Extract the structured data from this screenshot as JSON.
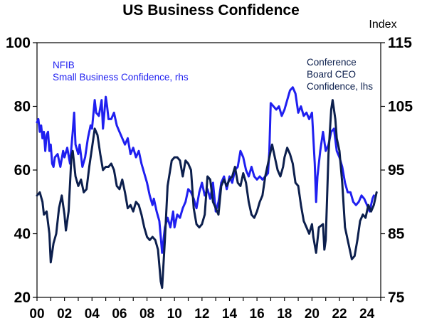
{
  "chart_data": {
    "type": "line",
    "title": "US Business Confidence",
    "y2label": "Index",
    "xlim": [
      2000,
      2025
    ],
    "ylim_left": [
      20,
      100
    ],
    "ylim_right": [
      75,
      115
    ],
    "left_ticks": [
      "100",
      "80",
      "60",
      "40",
      "20"
    ],
    "right_ticks": [
      "115",
      "105",
      "95",
      "85",
      "75"
    ],
    "x_ticks": [
      "00",
      "02",
      "04",
      "06",
      "08",
      "10",
      "12",
      "14",
      "16",
      "18",
      "20",
      "22",
      "24"
    ],
    "grid": false,
    "colors": {
      "nfib": "#1f1ff0",
      "ceo": "#0c1f4d"
    },
    "annotations": {
      "nfib_label_1": "NFIB",
      "nfib_label_2": "Small Business Confidence, rhs",
      "ceo_label_1": "Conference",
      "ceo_label_2": "Board CEO",
      "ceo_label_3": "Confidence, lhs"
    },
    "series": [
      {
        "key": "nfib",
        "axis": "right",
        "points": [
          [
            2000.0,
            102.5
          ],
          [
            2000.1,
            103
          ],
          [
            2000.2,
            101
          ],
          [
            2000.3,
            102
          ],
          [
            2000.4,
            100
          ],
          [
            2000.5,
            101
          ],
          [
            2000.6,
            98
          ],
          [
            2000.7,
            100.5
          ],
          [
            2000.8,
            101
          ],
          [
            2000.9,
            98
          ],
          [
            2001.0,
            99
          ],
          [
            2001.1,
            96
          ],
          [
            2001.2,
            95.5
          ],
          [
            2001.3,
            97
          ],
          [
            2001.5,
            97.5
          ],
          [
            2001.7,
            95.5
          ],
          [
            2001.9,
            98
          ],
          [
            2002.0,
            97
          ],
          [
            2002.2,
            98.5
          ],
          [
            2002.4,
            96
          ],
          [
            2002.6,
            101
          ],
          [
            2002.7,
            104
          ],
          [
            2002.8,
            99
          ],
          [
            2003.0,
            97.5
          ],
          [
            2003.1,
            99
          ],
          [
            2003.3,
            95.5
          ],
          [
            2003.5,
            97
          ],
          [
            2003.7,
            100
          ],
          [
            2003.9,
            102
          ],
          [
            2004.0,
            101.5
          ],
          [
            2004.2,
            106
          ],
          [
            2004.3,
            104
          ],
          [
            2004.5,
            103.5
          ],
          [
            2004.7,
            106
          ],
          [
            2004.8,
            101.5
          ],
          [
            2005.0,
            106.5
          ],
          [
            2005.1,
            105
          ],
          [
            2005.2,
            103
          ],
          [
            2005.4,
            103
          ],
          [
            2005.6,
            104
          ],
          [
            2005.8,
            102
          ],
          [
            2006.0,
            101
          ],
          [
            2006.2,
            100
          ],
          [
            2006.4,
            99
          ],
          [
            2006.6,
            100
          ],
          [
            2006.8,
            97.5
          ],
          [
            2007.0,
            98.5
          ],
          [
            2007.2,
            97
          ],
          [
            2007.4,
            98
          ],
          [
            2007.6,
            96
          ],
          [
            2007.8,
            94.5
          ],
          [
            2008.0,
            93
          ],
          [
            2008.2,
            91
          ],
          [
            2008.4,
            89.5
          ],
          [
            2008.5,
            90.5
          ],
          [
            2008.7,
            88.5
          ],
          [
            2008.9,
            87
          ],
          [
            2009.0,
            84.5
          ],
          [
            2009.1,
            82
          ],
          [
            2009.3,
            86
          ],
          [
            2009.5,
            87.5
          ],
          [
            2009.7,
            86
          ],
          [
            2009.9,
            88.5
          ],
          [
            2010.0,
            86
          ],
          [
            2010.2,
            88
          ],
          [
            2010.4,
            87.5
          ],
          [
            2010.6,
            89
          ],
          [
            2010.8,
            90
          ],
          [
            2011.0,
            92
          ],
          [
            2011.2,
            91.5
          ],
          [
            2011.4,
            90.5
          ],
          [
            2011.6,
            89
          ],
          [
            2011.8,
            91.5
          ],
          [
            2012.0,
            93
          ],
          [
            2012.2,
            91
          ],
          [
            2012.4,
            92
          ],
          [
            2012.6,
            90.5
          ],
          [
            2012.8,
            93
          ],
          [
            2013.0,
            88.5
          ],
          [
            2013.2,
            90
          ],
          [
            2013.4,
            93
          ],
          [
            2013.6,
            94
          ],
          [
            2013.8,
            92
          ],
          [
            2014.0,
            94
          ],
          [
            2014.2,
            93
          ],
          [
            2014.4,
            95
          ],
          [
            2014.6,
            95.5
          ],
          [
            2014.8,
            98
          ],
          [
            2015.0,
            97
          ],
          [
            2015.2,
            95
          ],
          [
            2015.4,
            94
          ],
          [
            2015.6,
            95.5
          ],
          [
            2015.8,
            94
          ],
          [
            2016.0,
            93.5
          ],
          [
            2016.2,
            94
          ],
          [
            2016.4,
            93.5
          ],
          [
            2016.6,
            94
          ],
          [
            2016.8,
            94.5
          ],
          [
            2016.9,
            98
          ],
          [
            2017.0,
            105.5
          ],
          [
            2017.2,
            105
          ],
          [
            2017.4,
            104.5
          ],
          [
            2017.6,
            105
          ],
          [
            2017.8,
            103.5
          ],
          [
            2018.0,
            104.5
          ],
          [
            2018.2,
            106
          ],
          [
            2018.4,
            107.5
          ],
          [
            2018.6,
            108
          ],
          [
            2018.8,
            107
          ],
          [
            2019.0,
            104
          ],
          [
            2019.2,
            105
          ],
          [
            2019.4,
            103.5
          ],
          [
            2019.6,
            104
          ],
          [
            2019.8,
            103
          ],
          [
            2020.0,
            104
          ],
          [
            2020.2,
            96
          ],
          [
            2020.3,
            90
          ],
          [
            2020.4,
            94
          ],
          [
            2020.6,
            98
          ],
          [
            2020.8,
            101
          ],
          [
            2021.0,
            98
          ],
          [
            2021.2,
            99
          ],
          [
            2021.4,
            101
          ],
          [
            2021.6,
            101.5
          ],
          [
            2021.8,
            98
          ],
          [
            2022.0,
            97
          ],
          [
            2022.2,
            95.5
          ],
          [
            2022.4,
            93
          ],
          [
            2022.6,
            91.5
          ],
          [
            2022.8,
            91.5
          ],
          [
            2023.0,
            90
          ],
          [
            2023.2,
            89.5
          ],
          [
            2023.4,
            90
          ],
          [
            2023.6,
            91
          ],
          [
            2023.8,
            90.5
          ],
          [
            2024.0,
            89.5
          ],
          [
            2024.2,
            88.5
          ],
          [
            2024.4,
            90.5
          ],
          [
            2024.5,
            91
          ]
        ]
      },
      {
        "key": "ceo",
        "axis": "left",
        "points": [
          [
            2000.0,
            52
          ],
          [
            2000.2,
            53
          ],
          [
            2000.4,
            50
          ],
          [
            2000.5,
            46
          ],
          [
            2000.7,
            47
          ],
          [
            2000.9,
            40
          ],
          [
            2001.0,
            31
          ],
          [
            2001.2,
            37
          ],
          [
            2001.4,
            40
          ],
          [
            2001.6,
            48
          ],
          [
            2001.8,
            52
          ],
          [
            2002.0,
            46
          ],
          [
            2002.1,
            41
          ],
          [
            2002.3,
            47
          ],
          [
            2002.5,
            64
          ],
          [
            2002.6,
            66
          ],
          [
            2002.8,
            58
          ],
          [
            2003.0,
            55
          ],
          [
            2003.2,
            57
          ],
          [
            2003.4,
            53
          ],
          [
            2003.6,
            54
          ],
          [
            2003.8,
            61
          ],
          [
            2004.0,
            67
          ],
          [
            2004.2,
            73
          ],
          [
            2004.4,
            71
          ],
          [
            2004.6,
            65
          ],
          [
            2004.8,
            60
          ],
          [
            2005.0,
            61
          ],
          [
            2005.2,
            61
          ],
          [
            2005.4,
            62
          ],
          [
            2005.6,
            60
          ],
          [
            2005.8,
            55
          ],
          [
            2006.0,
            54
          ],
          [
            2006.2,
            57
          ],
          [
            2006.4,
            53
          ],
          [
            2006.6,
            48
          ],
          [
            2006.8,
            49
          ],
          [
            2007.0,
            47
          ],
          [
            2007.2,
            50
          ],
          [
            2007.4,
            49
          ],
          [
            2007.6,
            46
          ],
          [
            2007.8,
            42
          ],
          [
            2008.0,
            39
          ],
          [
            2008.2,
            38
          ],
          [
            2008.4,
            39
          ],
          [
            2008.6,
            38
          ],
          [
            2008.8,
            35
          ],
          [
            2009.0,
            25
          ],
          [
            2009.1,
            23
          ],
          [
            2009.3,
            38
          ],
          [
            2009.5,
            55
          ],
          [
            2009.8,
            63
          ],
          [
            2010.0,
            64
          ],
          [
            2010.2,
            64
          ],
          [
            2010.4,
            63
          ],
          [
            2010.6,
            58
          ],
          [
            2010.8,
            63
          ],
          [
            2011.0,
            62
          ],
          [
            2011.2,
            60
          ],
          [
            2011.4,
            48
          ],
          [
            2011.6,
            43
          ],
          [
            2011.8,
            42
          ],
          [
            2012.0,
            43
          ],
          [
            2012.2,
            46
          ],
          [
            2012.4,
            58
          ],
          [
            2012.6,
            57
          ],
          [
            2012.8,
            50
          ],
          [
            2013.0,
            48
          ],
          [
            2013.2,
            46
          ],
          [
            2013.4,
            55
          ],
          [
            2013.6,
            57
          ],
          [
            2013.8,
            55
          ],
          [
            2014.0,
            57
          ],
          [
            2014.2,
            58
          ],
          [
            2014.4,
            61
          ],
          [
            2014.6,
            56
          ],
          [
            2014.8,
            55
          ],
          [
            2015.0,
            59
          ],
          [
            2015.2,
            56
          ],
          [
            2015.4,
            50
          ],
          [
            2015.6,
            46
          ],
          [
            2015.8,
            45
          ],
          [
            2016.0,
            47
          ],
          [
            2016.2,
            50
          ],
          [
            2016.4,
            52
          ],
          [
            2016.6,
            58
          ],
          [
            2016.8,
            62
          ],
          [
            2017.0,
            66
          ],
          [
            2017.1,
            68
          ],
          [
            2017.3,
            64
          ],
          [
            2017.5,
            60
          ],
          [
            2017.7,
            58
          ],
          [
            2017.9,
            61
          ],
          [
            2018.0,
            64
          ],
          [
            2018.2,
            67
          ],
          [
            2018.4,
            65
          ],
          [
            2018.6,
            62
          ],
          [
            2018.8,
            56
          ],
          [
            2019.0,
            55
          ],
          [
            2019.2,
            49
          ],
          [
            2019.4,
            44
          ],
          [
            2019.6,
            42
          ],
          [
            2019.8,
            40
          ],
          [
            2020.0,
            43
          ],
          [
            2020.1,
            39
          ],
          [
            2020.3,
            34
          ],
          [
            2020.5,
            42
          ],
          [
            2020.8,
            43
          ],
          [
            2020.9,
            35
          ],
          [
            2021.0,
            38
          ],
          [
            2021.2,
            65
          ],
          [
            2021.4,
            79
          ],
          [
            2021.5,
            82
          ],
          [
            2021.7,
            76
          ],
          [
            2021.8,
            70
          ],
          [
            2022.0,
            66
          ],
          [
            2022.2,
            56
          ],
          [
            2022.4,
            42
          ],
          [
            2022.6,
            38
          ],
          [
            2022.8,
            34
          ],
          [
            2022.9,
            32
          ],
          [
            2023.1,
            33
          ],
          [
            2023.3,
            38
          ],
          [
            2023.5,
            44
          ],
          [
            2023.7,
            46
          ],
          [
            2023.9,
            45
          ],
          [
            2024.1,
            49
          ],
          [
            2024.3,
            47
          ],
          [
            2024.5,
            49
          ],
          [
            2024.7,
            53
          ]
        ]
      }
    ]
  }
}
